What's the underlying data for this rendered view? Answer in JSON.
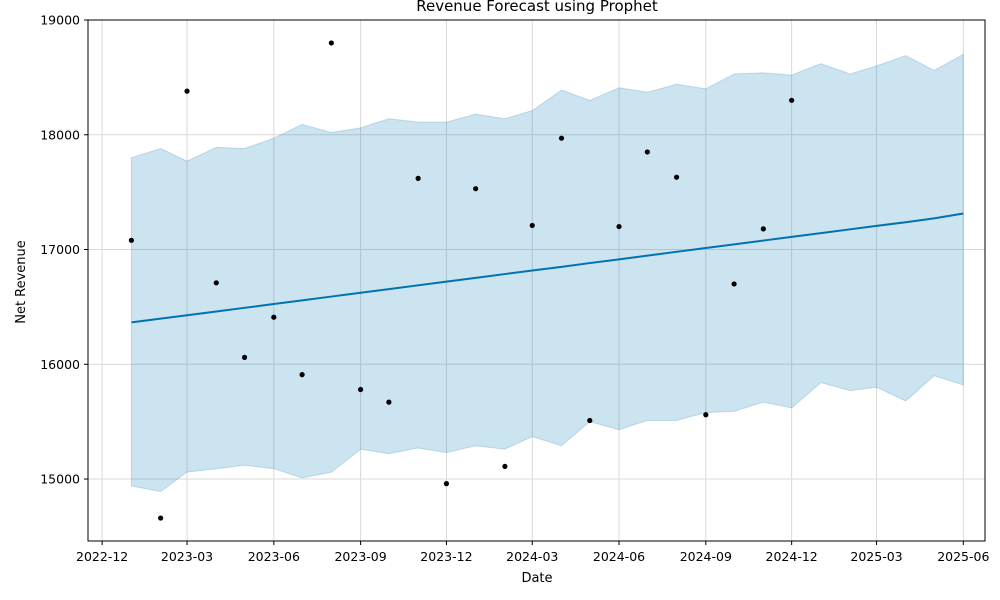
{
  "chart_data": {
    "type": "line",
    "title": "Revenue Forecast using Prophet",
    "xlabel": "Date",
    "ylabel": "Net Revenue",
    "xlim": [
      "2022-11-16",
      "2025-06-24"
    ],
    "ylim": [
      14460,
      19000
    ],
    "grid": true,
    "x_ticks": [
      "2022-12",
      "2023-03",
      "2023-06",
      "2023-09",
      "2023-12",
      "2024-03",
      "2024-06",
      "2024-09",
      "2024-12",
      "2025-03",
      "2025-06"
    ],
    "y_ticks": [
      15000,
      16000,
      17000,
      18000,
      19000
    ],
    "colors": {
      "forecast_line": "#0072b2",
      "uncertainty_band": "#0072b2",
      "observed_points": "#000000",
      "grid": "#d9d9d9"
    },
    "forecast": {
      "x": [
        "2023-01-01",
        "2023-02-01",
        "2023-03-01",
        "2023-04-01",
        "2023-05-01",
        "2023-06-01",
        "2023-07-01",
        "2023-08-01",
        "2023-09-01",
        "2023-10-01",
        "2023-11-01",
        "2023-12-01",
        "2024-01-01",
        "2024-02-01",
        "2024-03-01",
        "2024-04-01",
        "2024-05-01",
        "2024-06-01",
        "2024-07-01",
        "2024-08-01",
        "2024-09-01",
        "2024-10-01",
        "2024-11-01",
        "2024-12-01",
        "2025-01-01",
        "2025-02-01",
        "2025-03-01",
        "2025-04-01",
        "2025-05-01",
        "2025-06-01"
      ],
      "yhat": [
        16365,
        16398,
        16427,
        16460,
        16492,
        16525,
        16557,
        16590,
        16623,
        16655,
        16688,
        16720,
        16753,
        16786,
        16817,
        16849,
        16882,
        16914,
        16947,
        16980,
        17013,
        17045,
        17078,
        17110,
        17143,
        17176,
        17206,
        17238,
        17271,
        17314
      ],
      "yhat_upper": [
        17800,
        17880,
        17770,
        17890,
        17880,
        17970,
        18090,
        18020,
        18060,
        18140,
        18110,
        18110,
        18180,
        18140,
        18210,
        18390,
        18300,
        18410,
        18370,
        18440,
        18400,
        18530,
        18540,
        18520,
        18620,
        18530,
        18600,
        18690,
        18560,
        18700
      ],
      "yhat_lower": [
        14940,
        14890,
        15060,
        15090,
        15120,
        15090,
        15010,
        15060,
        15260,
        15220,
        15270,
        15230,
        15290,
        15260,
        15370,
        15290,
        15500,
        15430,
        15510,
        15510,
        15580,
        15590,
        15670,
        15620,
        15840,
        15770,
        15800,
        15680,
        15900,
        15820
      ]
    },
    "observed": {
      "x": [
        "2023-01-01",
        "2023-02-01",
        "2023-03-01",
        "2023-04-01",
        "2023-05-01",
        "2023-06-01",
        "2023-07-01",
        "2023-08-01",
        "2023-09-01",
        "2023-10-01",
        "2023-11-01",
        "2023-12-01",
        "2024-01-01",
        "2024-02-01",
        "2024-03-01",
        "2024-04-01",
        "2024-05-01",
        "2024-06-01",
        "2024-07-01",
        "2024-08-01",
        "2024-09-01",
        "2024-10-01",
        "2024-11-01",
        "2024-12-01"
      ],
      "y": [
        17080,
        14660,
        18380,
        16710,
        16060,
        16410,
        15910,
        18800,
        15780,
        15670,
        17620,
        14960,
        17530,
        15110,
        17210,
        17970,
        15510,
        17200,
        17850,
        17630,
        15560,
        16700,
        17180,
        18300
      ]
    }
  }
}
